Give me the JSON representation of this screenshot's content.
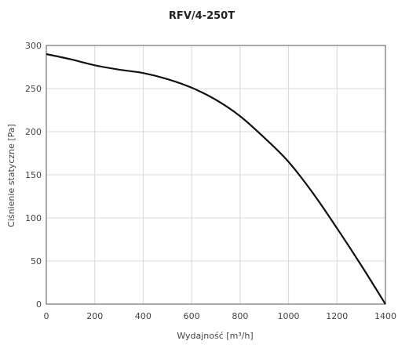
{
  "chart_data": {
    "type": "line",
    "title": "RFV/4-250T",
    "xlabel": "Wydajność [m³/h]",
    "ylabel": "Ciśnienie statyczne [Pa]",
    "xlim": [
      0,
      1400
    ],
    "ylim": [
      0,
      300
    ],
    "xticks": [
      0,
      200,
      400,
      600,
      800,
      1000,
      1200,
      1400
    ],
    "yticks": [
      0,
      50,
      100,
      150,
      200,
      250,
      300
    ],
    "grid": true,
    "colors": {
      "curve": "#111111",
      "grid": "#d8d8d8",
      "frame": "#555555"
    },
    "series": [
      {
        "x": [
          0,
          100,
          200,
          300,
          400,
          500,
          600,
          700,
          800,
          900,
          1000,
          1100,
          1200,
          1300,
          1400
        ],
        "y": [
          290,
          284,
          277,
          272,
          268,
          261,
          251,
          237,
          218,
          193,
          165,
          129,
          88,
          45,
          0
        ]
      }
    ]
  }
}
